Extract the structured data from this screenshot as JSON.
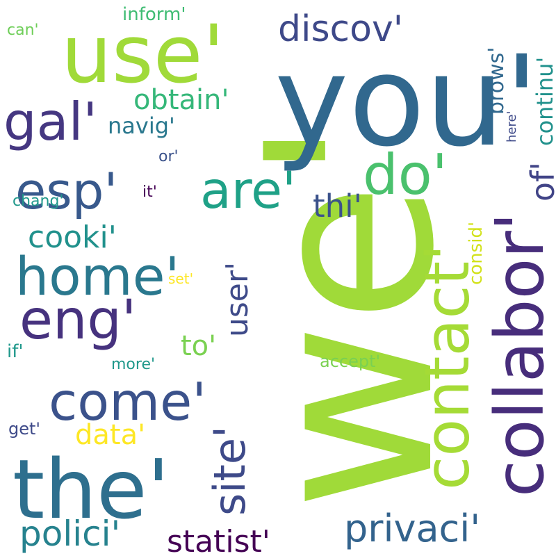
{
  "words": [
    {
      "text": "we'",
      "color": "#a0da39",
      "rotated": true
    },
    {
      "text": "you'",
      "color": "#31688e",
      "rotated": false
    },
    {
      "text": "use'",
      "color": "#a0da39",
      "rotated": false
    },
    {
      "text": "the'",
      "color": "#2e6f8e",
      "rotated": false
    },
    {
      "text": "collabor'",
      "color": "#472d7b",
      "rotated": true
    },
    {
      "text": "contact'",
      "color": "#a5db36",
      "rotated": true
    },
    {
      "text": "come'",
      "color": "#3b528b",
      "rotated": false
    },
    {
      "text": "do'",
      "color": "#4ac16d",
      "rotated": false
    },
    {
      "text": "home'",
      "color": "#2a788e",
      "rotated": false
    },
    {
      "text": "eng'",
      "color": "#46327e",
      "rotated": false
    },
    {
      "text": "are'",
      "color": "#1fa187",
      "rotated": false
    },
    {
      "text": "esp'",
      "color": "#38598c",
      "rotated": false
    },
    {
      "text": "gal'",
      "color": "#453781",
      "rotated": false
    },
    {
      "text": "discov'",
      "color": "#3e4989",
      "rotated": false
    },
    {
      "text": "privaci'",
      "color": "#33638d",
      "rotated": false
    },
    {
      "text": "polici'",
      "color": "#26828e",
      "rotated": false
    },
    {
      "text": "statist'",
      "color": "#440154",
      "rotated": false
    },
    {
      "text": "site'",
      "color": "#3e4a89",
      "rotated": true
    },
    {
      "text": "of'",
      "color": "#414487",
      "rotated": true
    },
    {
      "text": "cooki'",
      "color": "#21918c",
      "rotated": false
    },
    {
      "text": "thi'",
      "color": "#3b528b",
      "rotated": false
    },
    {
      "text": "obtain'",
      "color": "#35b779",
      "rotated": false
    },
    {
      "text": "user'",
      "color": "#3e4a89",
      "rotated": true
    },
    {
      "text": "to'",
      "color": "#7ad151",
      "rotated": false
    },
    {
      "text": "data'",
      "color": "#fde725",
      "rotated": false
    },
    {
      "text": "continu'",
      "color": "#21918c",
      "rotated": true
    },
    {
      "text": "navig'",
      "color": "#2a788e",
      "rotated": false
    },
    {
      "text": "brows'",
      "color": "#31688e",
      "rotated": true
    },
    {
      "text": "inform'",
      "color": "#3fbc73",
      "rotated": false
    },
    {
      "text": "consid'",
      "color": "#d2e21b",
      "rotated": true
    },
    {
      "text": "accept'",
      "color": "#7ad151",
      "rotated": false
    },
    {
      "text": "if'",
      "color": "#1f988b",
      "rotated": false
    },
    {
      "text": "chang'",
      "color": "#1f988b",
      "rotated": false
    },
    {
      "text": "more'",
      "color": "#1f988b",
      "rotated": false
    },
    {
      "text": "get'",
      "color": "#3e4a89",
      "rotated": false
    },
    {
      "text": "it'",
      "color": "#440154",
      "rotated": false
    },
    {
      "text": "or'",
      "color": "#3b528b",
      "rotated": false
    },
    {
      "text": "here'",
      "color": "#3e4a89",
      "rotated": true
    },
    {
      "text": "can'",
      "color": "#6ece58",
      "rotated": false
    },
    {
      "text": "set'",
      "color": "#fde725",
      "rotated": false
    }
  ]
}
